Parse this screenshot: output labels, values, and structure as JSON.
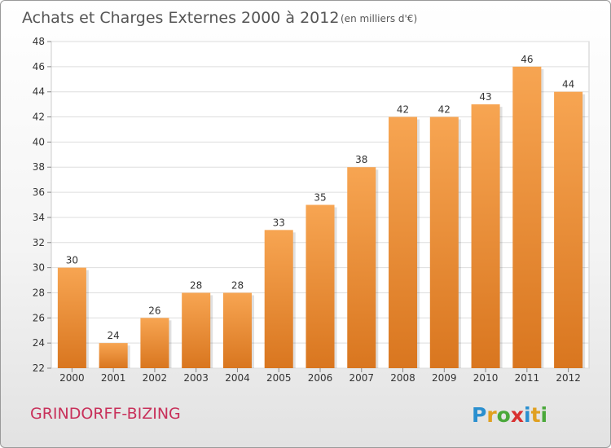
{
  "header": {
    "title": "Achats et Charges Externes 2000 à 2012",
    "unit": "(en milliers d'€)"
  },
  "footer": {
    "commune": "GRINDORFF-BIZING",
    "logo_text": "Proxiti",
    "logo_colors": [
      "#2a8fcf",
      "#e0a020",
      "#4aa83a",
      "#d83030",
      "#2a8fcf",
      "#e0a020",
      "#4aa83a"
    ]
  },
  "chart_data": {
    "type": "bar",
    "categories": [
      "2000",
      "2001",
      "2002",
      "2003",
      "2004",
      "2005",
      "2006",
      "2007",
      "2008",
      "2009",
      "2010",
      "2011",
      "2012"
    ],
    "values": [
      30,
      24,
      26,
      28,
      28,
      33,
      35,
      38,
      42,
      42,
      43,
      46,
      44
    ],
    "ylim": [
      22,
      48
    ],
    "yticks": [
      22,
      24,
      26,
      28,
      30,
      32,
      34,
      36,
      38,
      40,
      42,
      44,
      46,
      48
    ],
    "grid": true,
    "bar_color_top": "#f7a552",
    "bar_color_bottom": "#d9761f"
  }
}
